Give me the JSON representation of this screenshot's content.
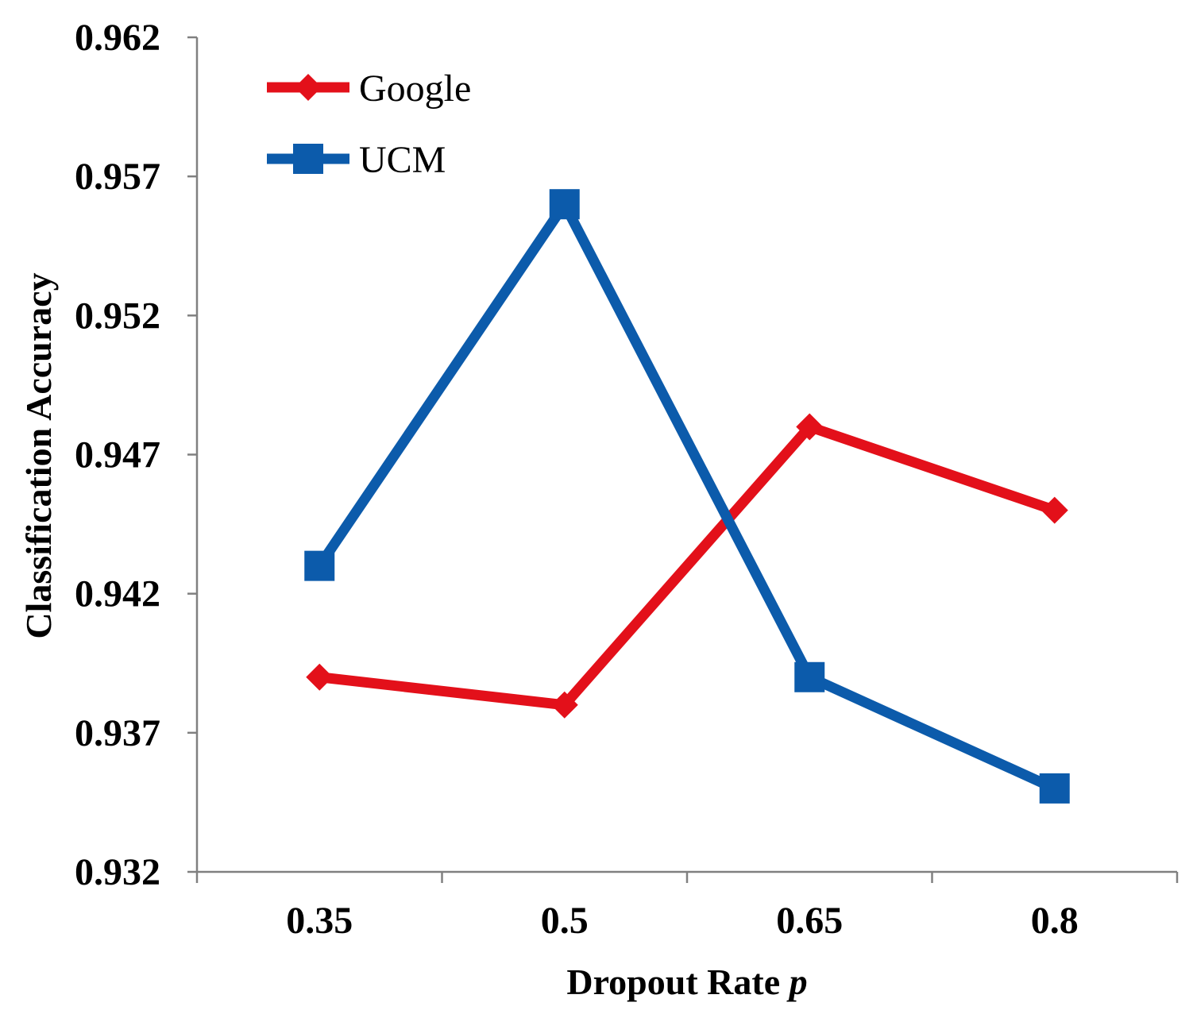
{
  "chart_data": {
    "type": "line",
    "title": "",
    "xlabel": "Dropout Rate ",
    "xlabel_italic": "p",
    "ylabel": "Classification Accuracy",
    "categories": [
      "0.35",
      "0.5",
      "0.65",
      "0.8"
    ],
    "y_ticks": [
      "0.932",
      "0.937",
      "0.942",
      "0.947",
      "0.952",
      "0.957",
      "0.962"
    ],
    "ylim": [
      0.932,
      0.962
    ],
    "grid": false,
    "legend_position": "top-left",
    "series": [
      {
        "name": "Google",
        "color": "#e3101a",
        "marker": "diamond",
        "values": [
          0.939,
          0.938,
          0.948,
          0.945
        ]
      },
      {
        "name": "UCM",
        "color": "#0c5bab",
        "marker": "square",
        "values": [
          0.943,
          0.956,
          0.939,
          0.935
        ]
      }
    ]
  }
}
